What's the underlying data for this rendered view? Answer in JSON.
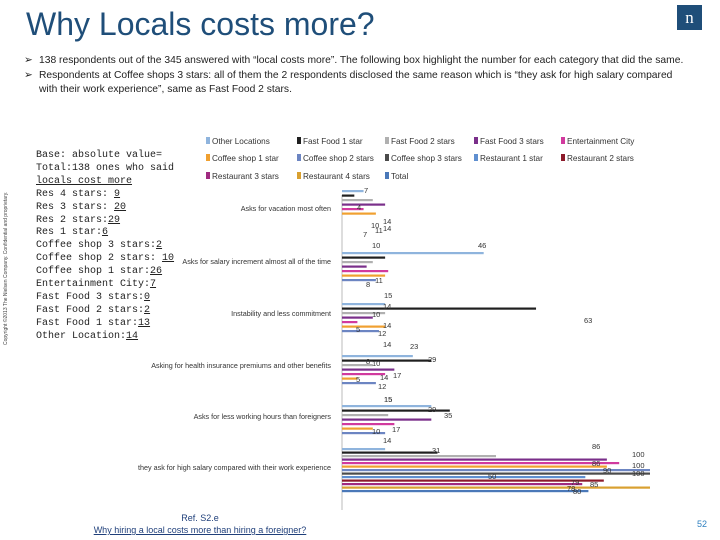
{
  "slide": {
    "title": "Why Locals costs more?",
    "logo_text": "n",
    "side_text": "Copyright ©2013 The Nielsen Company. Confidential and proprietary.",
    "bullets": [
      "138 respondents out of the 345 answered with “local costs more”. The following box highlight the number for each category that did the same.",
      "Respondents at Coffee shops 3 stars: all of them the 2 respondents disclosed the same reason which is “they ask for high salary compared with their work experience”, same as Fast Food 2 stars."
    ],
    "bullet_marker": "➢",
    "base_box": [
      {
        "label": "Base: absolute value=",
        "value": ""
      },
      {
        "label": "Total:138 ones who said",
        "value": ""
      },
      {
        "label": "locals cost more",
        "value": ""
      },
      {
        "label": "Res 4 stars: ",
        "value": "9"
      },
      {
        "label": "Res 3 stars: ",
        "value": "20"
      },
      {
        "label": "Res 2 stars:",
        "value": "29"
      },
      {
        "label": "Res 1 star:",
        "value": "6"
      },
      {
        "label": "Coffee shop 3 stars:",
        "value": "2"
      },
      {
        "label": "Coffee shop 2 stars: ",
        "value": "10"
      },
      {
        "label": "Coffee shop 1 star:",
        "value": "26"
      },
      {
        "label": "Entertainment City:",
        "value": "7"
      },
      {
        "label": "Fast Food 3 stars:",
        "value": "0"
      },
      {
        "label": "Fast Food 2 stars:",
        "value": "2"
      },
      {
        "label": "Fast Food 1 star:",
        "value": "13"
      },
      {
        "label": "Other Location:",
        "value": "14"
      }
    ],
    "ref_line1": "Ref. S2.e",
    "ref_line2": "Why hiring a local costs more than hiring a foreigner?",
    "page_number": "52"
  },
  "chart_data": {
    "type": "bar",
    "orientation": "horizontal",
    "x_range": [
      0,
      100
    ],
    "categories": [
      "Asks for vacation most often",
      "Asks for salary increment almost all of the time",
      "Instability and less commitment",
      "Asking for health insurance premiums and other benefits",
      "Asks for less working hours than foreigners",
      "they ask for high salary compared with their work experience"
    ],
    "series": [
      {
        "name": "Other Locations",
        "color": "#8fb4dd",
        "values": [
          7,
          46,
          14,
          23,
          29,
          14
        ]
      },
      {
        "name": "Fast Food 1 star",
        "color": "#1f1f1f",
        "values": [
          4,
          14,
          63,
          29,
          35,
          31
        ]
      },
      {
        "name": "Fast Food 2 stars",
        "color": "#b0b0b0",
        "values": [
          10,
          10,
          14,
          10,
          15,
          50
        ]
      },
      {
        "name": "Fast Food 3 stars",
        "color": "#7a2f8a",
        "values": [
          14,
          8,
          10,
          17,
          29,
          86
        ]
      },
      {
        "name": "Entertainment City",
        "color": "#d13a9e",
        "values": [
          7,
          15,
          5,
          14,
          17,
          90
        ]
      },
      {
        "name": "Coffee shop 1 star",
        "color": "#f0a030",
        "values": [
          11,
          14,
          14,
          5,
          10,
          86
        ]
      },
      {
        "name": "Coffee shop 2 stars",
        "color": "#6c85c2",
        "values": [
          0,
          11,
          12,
          11,
          14,
          100
        ]
      },
      {
        "name": "Coffee shop 3 stars",
        "color": "#4b4b4b",
        "values": [
          0,
          0,
          0,
          0,
          0,
          100
        ]
      },
      {
        "name": "Restaurant 1 star",
        "color": "#5f8fd0",
        "values": [
          0,
          0,
          0,
          0,
          0,
          79
        ]
      },
      {
        "name": "Restaurant 2 stars",
        "color": "#8c1a2a",
        "values": [
          0,
          0,
          0,
          0,
          0,
          85
        ]
      },
      {
        "name": "Restaurant 3 stars",
        "color": "#a02a80",
        "values": [
          0,
          0,
          0,
          0,
          0,
          78
        ]
      },
      {
        "name": "Restaurant 4 stars",
        "color": "#d9a030",
        "values": [
          0,
          0,
          0,
          0,
          0,
          100
        ]
      },
      {
        "name": "Total",
        "color": "#4a78b8",
        "values": [
          0,
          0,
          0,
          0,
          0,
          80
        ]
      }
    ],
    "visible_labels": [
      [
        "7",
        "4",
        "10",
        "14",
        "7",
        "11"
      ],
      [
        "46",
        "14",
        "10",
        "8",
        "11",
        "15"
      ],
      [
        "14",
        "10",
        "5",
        "14",
        "12",
        "63"
      ],
      [
        "14",
        "23",
        "8",
        "10",
        "5",
        "17",
        "14",
        "12",
        "15"
      ],
      [
        "29",
        "35",
        "29",
        "10",
        "17",
        "14",
        "15"
      ],
      [
        "31",
        "86",
        "50",
        "86",
        "90",
        "100",
        "100",
        "100",
        "79",
        "85",
        "78",
        "80"
      ]
    ]
  }
}
